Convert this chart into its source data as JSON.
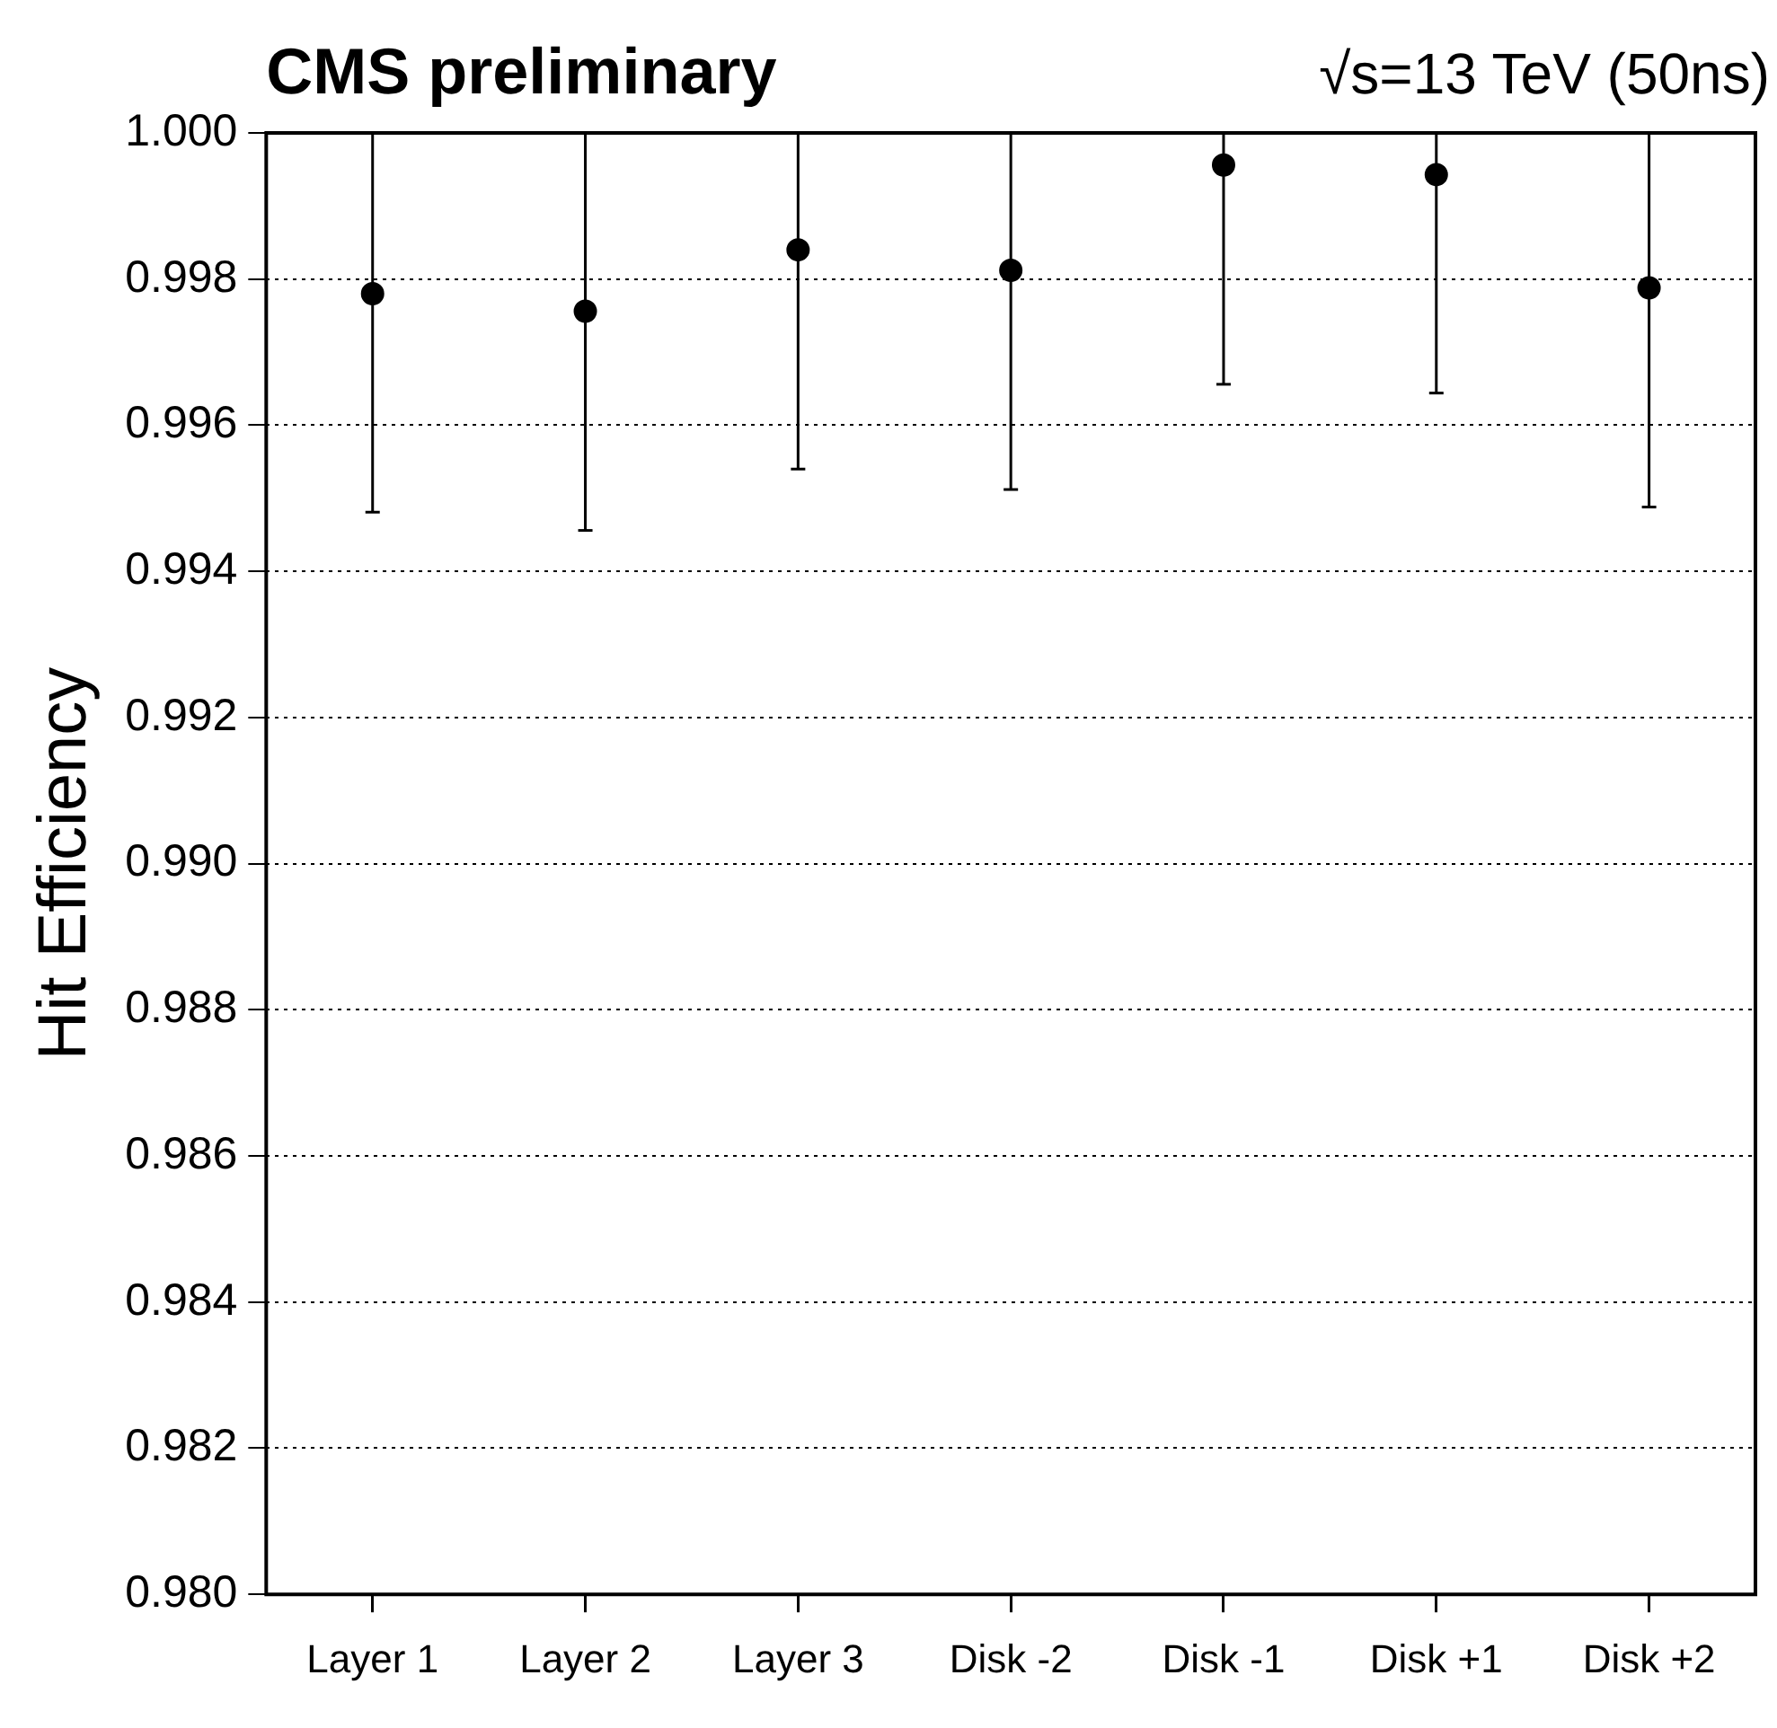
{
  "chart_data": {
    "type": "scatter",
    "title": "CMS preliminary",
    "subtitle": "√s=13 TeV (50ns)",
    "ylabel": "Hit Efficiency",
    "categories": [
      "Layer 1",
      "Layer 2",
      "Layer 3",
      "Disk -2",
      "Disk -1",
      "Disk +1",
      "Disk +2"
    ],
    "series": [
      {
        "color": "#000000",
        "values": [
          0.9978,
          0.99756,
          0.9984,
          0.99812,
          0.99956,
          0.99943,
          0.99788
        ],
        "errors": [
          [
            0.99481,
            1.0
          ],
          [
            0.99456,
            1.0
          ],
          [
            0.9954,
            1.0
          ],
          [
            0.99512,
            1.0
          ],
          [
            0.99656,
            1.0
          ],
          [
            0.99644,
            1.0
          ],
          [
            0.99488,
            1.0
          ]
        ]
      }
    ],
    "ylim": [
      0.98,
      1.0
    ],
    "yticks": [
      {
        "value": 0.98,
        "label": "0.980"
      },
      {
        "value": 0.982,
        "label": "0.982"
      },
      {
        "value": 0.984,
        "label": "0.984"
      },
      {
        "value": 0.986,
        "label": "0.986"
      },
      {
        "value": 0.988,
        "label": "0.988"
      },
      {
        "value": 0.99,
        "label": "0.990"
      },
      {
        "value": 0.992,
        "label": "0.992"
      },
      {
        "value": 0.994,
        "label": "0.994"
      },
      {
        "value": 0.996,
        "label": "0.996"
      },
      {
        "value": 0.998,
        "label": "0.998"
      },
      {
        "value": 1.0,
        "label": "1.000"
      }
    ],
    "grid": "y",
    "legend": false,
    "marker": "circle"
  }
}
